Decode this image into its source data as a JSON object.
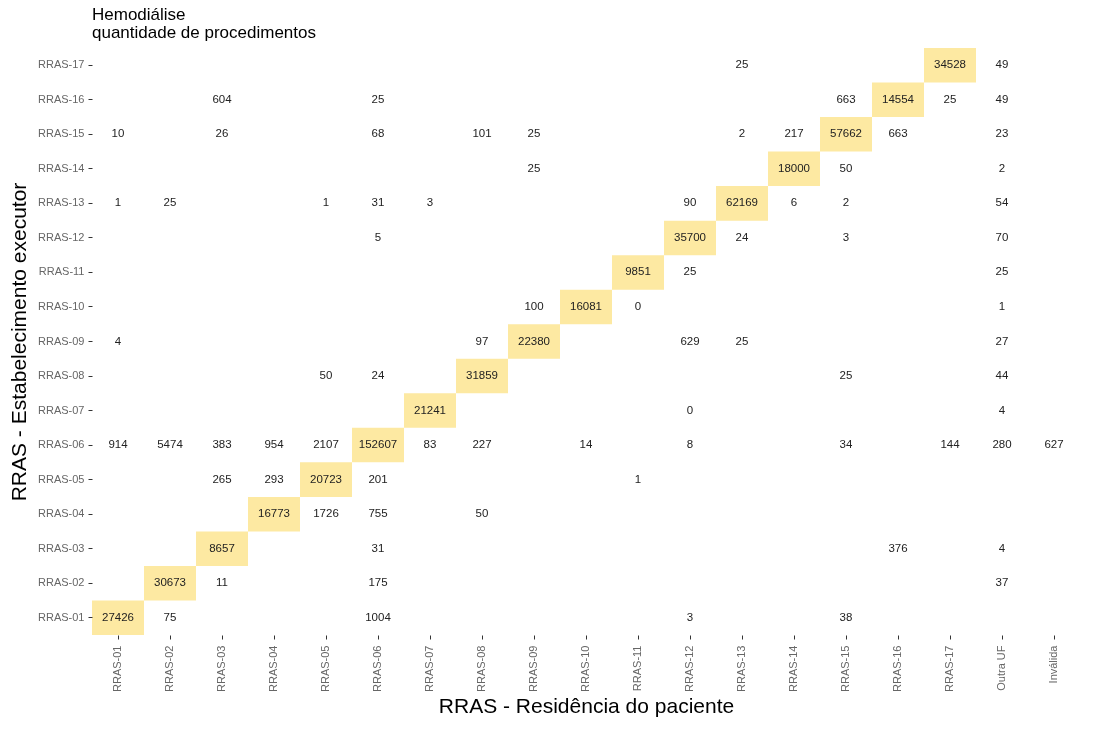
{
  "chart_data": {
    "type": "heatmap",
    "title": "Hemodiálise",
    "subtitle": "quantidade de procedimentos",
    "xlabel": "RRAS - Residência do paciente",
    "ylabel": "RRAS - Estabelecimento executor",
    "grid": false,
    "data_labels": true,
    "categories": [
      "RRAS-01",
      "RRAS-02",
      "RRAS-03",
      "RRAS-04",
      "RRAS-05",
      "RRAS-06",
      "RRAS-07",
      "RRAS-08",
      "RRAS-09",
      "RRAS-10",
      "RRAS-11",
      "RRAS-12",
      "RRAS-13",
      "RRAS-14",
      "RRAS-15",
      "RRAS-16",
      "RRAS-17",
      "Outra UF",
      "Inválida"
    ],
    "y_categories": [
      "RRAS-17",
      "RRAS-16",
      "RRAS-15",
      "RRAS-14",
      "RRAS-13",
      "RRAS-12",
      "RRAS-11",
      "RRAS-10",
      "RRAS-09",
      "RRAS-08",
      "RRAS-07",
      "RRAS-06",
      "RRAS-05",
      "RRAS-04",
      "RRAS-03",
      "RRAS-02",
      "RRAS-01"
    ],
    "cells": [
      [
        null,
        null,
        null,
        null,
        null,
        null,
        null,
        null,
        null,
        null,
        null,
        null,
        25,
        null,
        null,
        null,
        34528,
        49,
        null
      ],
      [
        null,
        null,
        604,
        null,
        null,
        25,
        null,
        null,
        null,
        null,
        null,
        null,
        null,
        null,
        663,
        14554,
        25,
        49,
        null
      ],
      [
        10,
        null,
        26,
        null,
        null,
        68,
        null,
        101,
        25,
        null,
        null,
        null,
        2,
        217,
        57662,
        663,
        null,
        23,
        null
      ],
      [
        null,
        null,
        null,
        null,
        null,
        null,
        null,
        null,
        25,
        null,
        null,
        null,
        null,
        18000,
        50,
        null,
        null,
        2,
        null
      ],
      [
        1,
        25,
        null,
        null,
        1,
        31,
        3,
        null,
        null,
        null,
        null,
        90,
        62169,
        6,
        2,
        null,
        null,
        54,
        null
      ],
      [
        null,
        null,
        null,
        null,
        null,
        5,
        null,
        null,
        null,
        null,
        null,
        35700,
        24,
        null,
        3,
        null,
        null,
        70,
        null
      ],
      [
        null,
        null,
        null,
        null,
        null,
        null,
        null,
        null,
        null,
        null,
        9851,
        25,
        null,
        null,
        null,
        null,
        null,
        25,
        null
      ],
      [
        null,
        null,
        null,
        null,
        null,
        null,
        null,
        null,
        100,
        16081,
        0,
        null,
        null,
        null,
        null,
        null,
        null,
        1,
        null
      ],
      [
        4,
        null,
        null,
        null,
        null,
        null,
        null,
        97,
        22380,
        null,
        null,
        629,
        25,
        null,
        null,
        null,
        null,
        27,
        null
      ],
      [
        null,
        null,
        null,
        null,
        50,
        24,
        null,
        31859,
        null,
        null,
        null,
        null,
        null,
        null,
        25,
        null,
        null,
        44,
        null
      ],
      [
        null,
        null,
        null,
        null,
        null,
        null,
        21241,
        null,
        null,
        null,
        null,
        0,
        null,
        null,
        null,
        null,
        null,
        4,
        null
      ],
      [
        914,
        5474,
        383,
        954,
        2107,
        152607,
        83,
        227,
        null,
        14,
        null,
        8,
        null,
        null,
        34,
        null,
        144,
        280,
        627
      ],
      [
        null,
        null,
        265,
        293,
        20723,
        201,
        null,
        null,
        null,
        null,
        1,
        null,
        null,
        null,
        null,
        null,
        null,
        null,
        null
      ],
      [
        null,
        null,
        null,
        16773,
        1726,
        755,
        null,
        50,
        null,
        null,
        null,
        null,
        null,
        null,
        null,
        null,
        null,
        null,
        null
      ],
      [
        null,
        null,
        8657,
        null,
        null,
        31,
        null,
        null,
        null,
        null,
        null,
        null,
        null,
        null,
        null,
        376,
        null,
        4,
        null
      ],
      [
        null,
        30673,
        11,
        null,
        null,
        175,
        null,
        null,
        null,
        null,
        null,
        null,
        null,
        null,
        null,
        null,
        null,
        37,
        null
      ],
      [
        27426,
        75,
        null,
        null,
        null,
        1004,
        null,
        null,
        null,
        null,
        null,
        3,
        null,
        null,
        38,
        null,
        null,
        null,
        null
      ]
    ],
    "colors": [
      [
        null,
        null,
        null,
        null,
        null,
        null,
        null,
        null,
        null,
        null,
        null,
        null,
        null,
        null,
        null,
        null,
        "#fde9a2",
        null,
        null
      ],
      [
        null,
        null,
        null,
        null,
        null,
        null,
        null,
        null,
        null,
        null,
        null,
        null,
        null,
        null,
        null,
        "#fde9a2",
        null,
        null,
        null
      ],
      [
        null,
        null,
        null,
        null,
        null,
        null,
        null,
        null,
        null,
        null,
        null,
        null,
        null,
        null,
        "#fde9a2",
        null,
        null,
        null,
        null
      ],
      [
        null,
        null,
        null,
        null,
        null,
        null,
        null,
        null,
        null,
        null,
        null,
        null,
        null,
        "#fde9a2",
        null,
        null,
        null,
        null,
        null
      ],
      [
        null,
        null,
        null,
        null,
        null,
        null,
        null,
        null,
        null,
        null,
        null,
        null,
        "#fde9a2",
        null,
        null,
        null,
        null,
        null,
        null
      ],
      [
        null,
        null,
        null,
        null,
        null,
        null,
        null,
        null,
        null,
        null,
        null,
        "#fde9a2",
        null,
        null,
        null,
        null,
        null,
        null,
        null
      ],
      [
        null,
        null,
        null,
        null,
        null,
        null,
        null,
        null,
        null,
        null,
        "#fde9a2",
        null,
        null,
        null,
        null,
        null,
        null,
        null,
        null
      ],
      [
        null,
        null,
        null,
        null,
        null,
        null,
        null,
        null,
        null,
        "#fde9a2",
        null,
        null,
        null,
        null,
        null,
        null,
        null,
        null,
        null
      ],
      [
        null,
        null,
        null,
        null,
        null,
        null,
        null,
        null,
        "#fde9a2",
        null,
        null,
        null,
        null,
        null,
        null,
        null,
        null,
        null,
        null
      ],
      [
        null,
        null,
        null,
        null,
        null,
        null,
        null,
        "#fde9a2",
        null,
        null,
        null,
        null,
        null,
        null,
        null,
        null,
        null,
        null,
        null
      ],
      [
        null,
        null,
        null,
        null,
        null,
        null,
        "#fde9a2",
        null,
        null,
        null,
        null,
        null,
        null,
        null,
        null,
        null,
        null,
        null,
        null
      ],
      [
        null,
        null,
        null,
        null,
        null,
        "#fde9a2",
        null,
        null,
        null,
        null,
        null,
        null,
        null,
        null,
        null,
        null,
        null,
        null,
        null
      ],
      [
        null,
        null,
        null,
        null,
        "#fde9a2",
        null,
        null,
        null,
        null,
        null,
        null,
        null,
        null,
        null,
        null,
        null,
        null,
        null,
        null
      ],
      [
        null,
        null,
        null,
        "#fde9a2",
        null,
        null,
        null,
        null,
        null,
        null,
        null,
        null,
        null,
        null,
        null,
        null,
        null,
        null,
        null
      ],
      [
        null,
        null,
        "#fde9a2",
        null,
        null,
        null,
        null,
        null,
        null,
        null,
        null,
        null,
        null,
        null,
        null,
        null,
        null,
        null,
        null
      ],
      [
        null,
        "#fde9a2",
        null,
        null,
        null,
        null,
        null,
        null,
        null,
        null,
        null,
        null,
        null,
        null,
        null,
        null,
        null,
        null,
        null
      ],
      [
        "#fde9a2",
        null,
        null,
        null,
        null,
        null,
        null,
        null,
        null,
        null,
        null,
        null,
        null,
        null,
        null,
        null,
        null,
        null,
        null
      ]
    ]
  }
}
